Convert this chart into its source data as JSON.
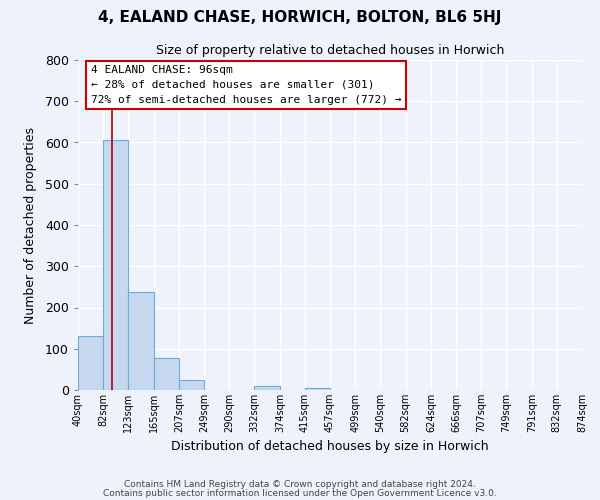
{
  "title": "4, EALAND CHASE, HORWICH, BOLTON, BL6 5HJ",
  "subtitle": "Size of property relative to detached houses in Horwich",
  "xlabel": "Distribution of detached houses by size in Horwich",
  "ylabel": "Number of detached properties",
  "bar_edges": [
    40,
    82,
    123,
    165,
    207,
    249,
    290,
    332,
    374,
    415,
    457,
    499,
    540,
    582,
    624,
    666,
    707,
    749,
    791,
    832,
    874
  ],
  "bar_heights": [
    130,
    605,
    238,
    78,
    25,
    0,
    0,
    10,
    0,
    5,
    0,
    0,
    0,
    0,
    0,
    0,
    0,
    0,
    0,
    0
  ],
  "bar_fill_color": "#c5d8f0",
  "bar_edge_color": "#6aaed6",
  "property_line_x": 96,
  "property_line_color": "#aa0000",
  "annotation_title": "4 EALAND CHASE: 96sqm",
  "annotation_line1": "← 28% of detached houses are smaller (301)",
  "annotation_line2": "72% of semi-detached houses are larger (772) →",
  "annotation_box_facecolor": "#ffffff",
  "annotation_box_edgecolor": "#cc0000",
  "xlim_left": 40,
  "xlim_right": 874,
  "ylim_top": 800,
  "ylim_bottom": 0,
  "yticks": [
    0,
    100,
    200,
    300,
    400,
    500,
    600,
    700,
    800
  ],
  "tick_positions": [
    40,
    82,
    123,
    165,
    207,
    249,
    290,
    332,
    374,
    415,
    457,
    499,
    540,
    582,
    624,
    666,
    707,
    749,
    791,
    832,
    874
  ],
  "tick_labels": [
    "40sqm",
    "82sqm",
    "123sqm",
    "165sqm",
    "207sqm",
    "249sqm",
    "290sqm",
    "332sqm",
    "374sqm",
    "415sqm",
    "457sqm",
    "499sqm",
    "540sqm",
    "582sqm",
    "624sqm",
    "666sqm",
    "707sqm",
    "749sqm",
    "791sqm",
    "832sqm",
    "874sqm"
  ],
  "footer1": "Contains HM Land Registry data © Crown copyright and database right 2024.",
  "footer2": "Contains public sector information licensed under the Open Government Licence v3.0.",
  "bg_color": "#eef2fa",
  "grid_color": "#ffffff",
  "fig_width": 6.0,
  "fig_height": 5.0,
  "dpi": 100
}
